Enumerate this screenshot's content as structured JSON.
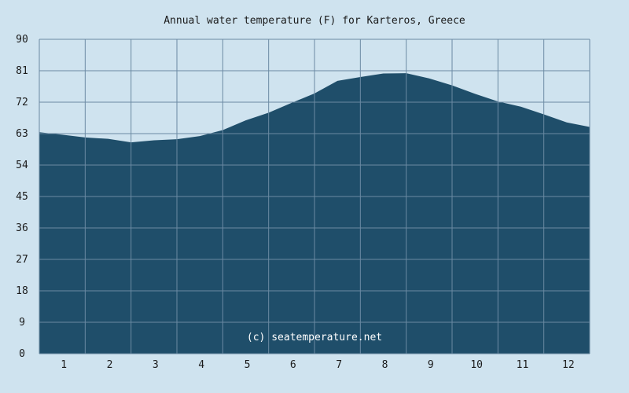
{
  "chart_data": {
    "type": "area",
    "title": "Annual water temperature (F) for Karteros, Greece",
    "xlabel": "",
    "ylabel": "",
    "x_ticks": [
      "1",
      "2",
      "3",
      "4",
      "5",
      "6",
      "7",
      "8",
      "9",
      "10",
      "11",
      "12"
    ],
    "y_ticks": [
      "0",
      "9",
      "18",
      "27",
      "36",
      "45",
      "54",
      "63",
      "72",
      "81",
      "90"
    ],
    "ylim": [
      0,
      90
    ],
    "xlim": [
      0.5,
      12.5
    ],
    "grid": true,
    "watermark": "(c) seatemperature.net",
    "colors": {
      "background": "#cfe3ef",
      "plot_background": "#cfe3ef",
      "fill": "#1f4e6a",
      "grid": "#6b8aa3",
      "text": "#1a1a1a",
      "watermark": "#ffffff"
    },
    "series": [
      {
        "x": [
          0.5,
          1.0,
          1.5,
          2.0,
          2.5,
          3.0,
          3.5,
          4.0,
          4.5,
          5.0,
          5.5,
          6.0,
          6.5,
          7.0,
          7.5,
          8.0,
          8.5,
          9.0,
          9.5,
          10.0,
          10.5,
          11.0,
          11.5,
          12.0,
          12.5
        ],
        "values": [
          63.4,
          62.7,
          61.9,
          61.5,
          60.5,
          61.1,
          61.4,
          62.3,
          64.0,
          66.8,
          69.0,
          71.8,
          74.5,
          78.1,
          79.2,
          80.2,
          80.3,
          78.8,
          76.8,
          74.4,
          72.2,
          70.7,
          68.5,
          66.2,
          64.9
        ]
      }
    ]
  }
}
